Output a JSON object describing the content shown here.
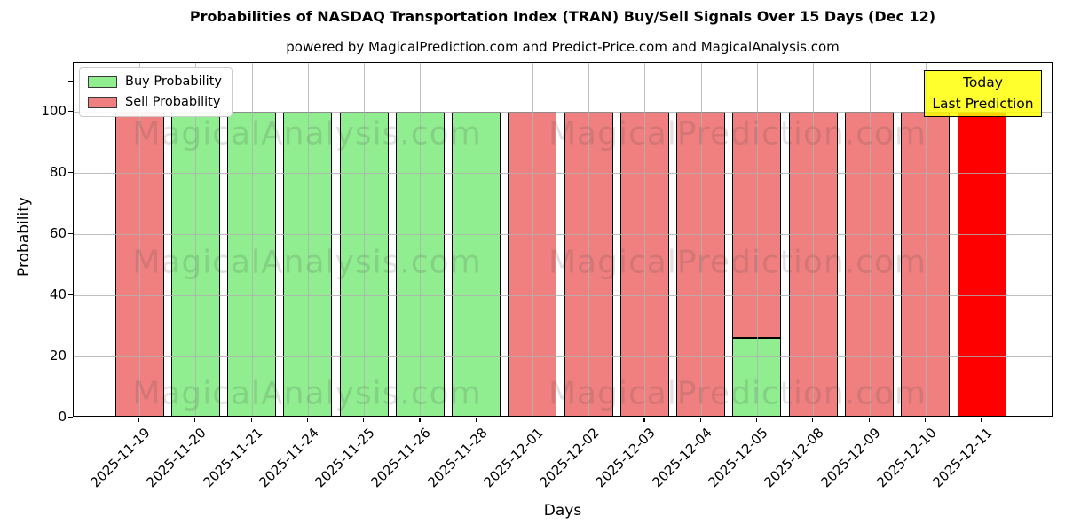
{
  "title": "Probabilities of NASDAQ Transportation Index  (TRAN) Buy/Sell Signals Over 15 Days (Dec 12)",
  "subtitle": "powered by MagicalPrediction.com and Predict-Price.com and MagicalAnalysis.com",
  "axes": {
    "xlabel": "Days",
    "ylabel": "Probability"
  },
  "legend": [
    {
      "label": "Buy Probability",
      "color": "#90ee90"
    },
    {
      "label": "Sell Probability",
      "color": "#f08080"
    }
  ],
  "annotation": {
    "line1": "Today",
    "line2": "Last Prediction",
    "bg_color": "#ffff00"
  },
  "watermarks": {
    "left": "MagicalAnalysis.com",
    "right": "MagicalPrediction.com"
  },
  "colors": {
    "buy": "#90ee90",
    "sell": "#f08080",
    "today_bar": "#ff0000",
    "grid": "#b0b0b0",
    "dashed_line": "#555555"
  },
  "chart_data": {
    "type": "bar",
    "stacked": true,
    "title": "Probabilities of NASDAQ Transportation Index  (TRAN) Buy/Sell Signals Over 15 Days (Dec 12)",
    "xlabel": "Days",
    "ylabel": "Probability",
    "ylim": [
      0,
      116
    ],
    "yticks": [
      0,
      20,
      40,
      60,
      80,
      100
    ],
    "extra_ytick": 110,
    "dashed_line_y": 110,
    "grid": true,
    "legend_position": "upper left",
    "categories": [
      "2025-11-19",
      "2025-11-20",
      "2025-11-21",
      "2025-11-24",
      "2025-11-25",
      "2025-11-26",
      "2025-11-28",
      "2025-12-01",
      "2025-12-02",
      "2025-12-03",
      "2025-12-04",
      "2025-12-05",
      "2025-12-08",
      "2025-12-09",
      "2025-12-10",
      "2025-12-11"
    ],
    "series": [
      {
        "name": "Buy Probability",
        "color": "#90ee90",
        "values": [
          0,
          100,
          100,
          100,
          100,
          100,
          100,
          0,
          0,
          0,
          0,
          26,
          0,
          0,
          0,
          0
        ]
      },
      {
        "name": "Sell Probability",
        "color": "#f08080",
        "values": [
          100,
          0,
          0,
          0,
          0,
          0,
          0,
          100,
          100,
          100,
          100,
          74,
          100,
          100,
          100,
          0
        ]
      },
      {
        "name": "Today Last Prediction",
        "color": "#ff0000",
        "values": [
          0,
          0,
          0,
          0,
          0,
          0,
          0,
          0,
          0,
          0,
          0,
          0,
          0,
          0,
          0,
          100
        ]
      }
    ]
  }
}
